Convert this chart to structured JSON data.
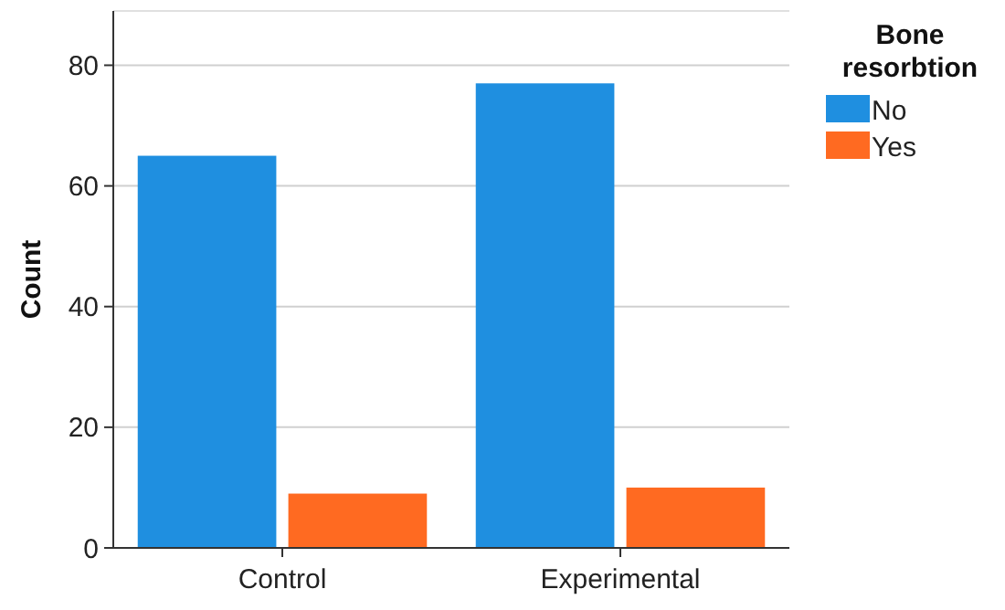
{
  "chart_data": {
    "type": "bar",
    "ylabel": "Count",
    "legend_title": "Bone resorbtion",
    "categories": [
      "Control",
      "Experimental"
    ],
    "series": [
      {
        "name": "No",
        "color": "#1f8fe0",
        "values": [
          65,
          77
        ]
      },
      {
        "name": "Yes",
        "color": "#ff6a21",
        "values": [
          9,
          10
        ]
      }
    ],
    "ylim": [
      0,
      89
    ],
    "yticks": [
      0,
      20,
      40,
      60,
      80
    ],
    "grid": "y",
    "legend": "top right"
  }
}
